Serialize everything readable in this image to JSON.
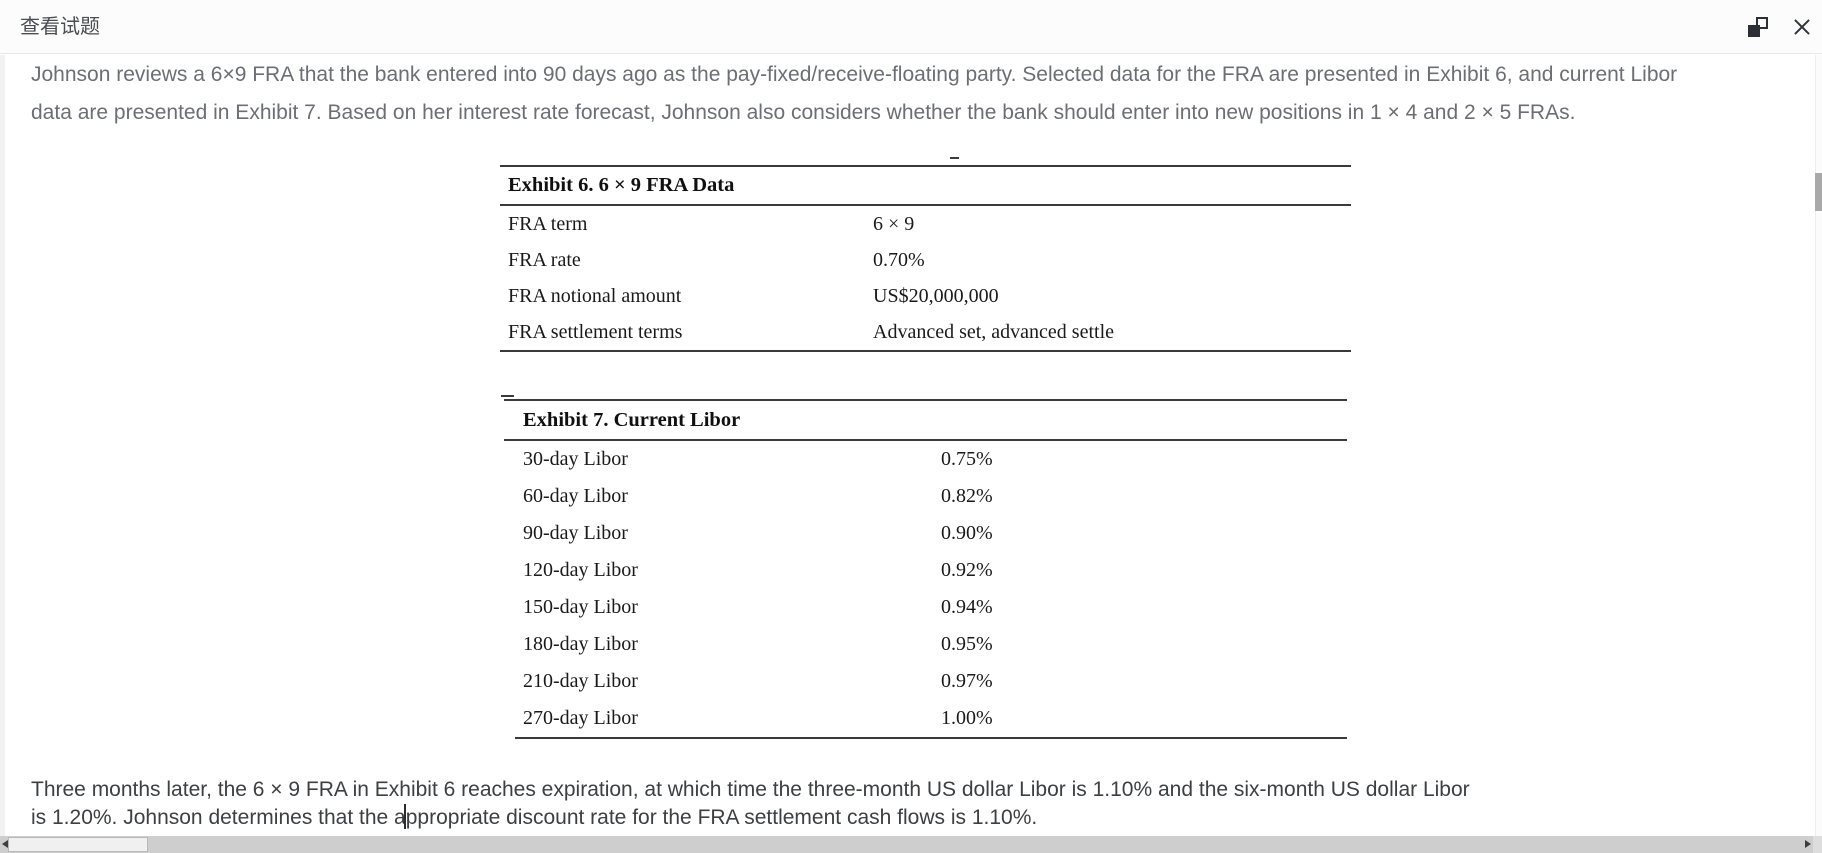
{
  "window": {
    "title": "查看试题"
  },
  "icons": {
    "restore": "overlapping-squares-restore",
    "close": "✕",
    "h_scroll_left": "◄",
    "h_scroll_right": "►"
  },
  "intro": {
    "line1": "Johnson reviews a 6×9 FRA that the bank entered into 90 days ago as the pay-fixed/receive-floating party. Selected data for the FRA are presented in Exhibit 6, and current Libor",
    "line2": "data are presented in Exhibit 7. Based on her interest rate forecast, Johnson also considers whether the bank should enter into new positions in 1 × 4 and 2 × 5 FRAs."
  },
  "exhibit6": {
    "title": "Exhibit 6. 6 × 9 FRA Data",
    "rows": [
      {
        "label": "FRA term",
        "value": "6 × 9"
      },
      {
        "label": "FRA rate",
        "value": "0.70%"
      },
      {
        "label": "FRA notional amount",
        "value": "US$20,000,000"
      },
      {
        "label": "FRA settlement terms",
        "value": "Advanced set, advanced settle"
      }
    ]
  },
  "exhibit7": {
    "title": "Exhibit 7. Current Libor",
    "rows": [
      {
        "label": "30-day Libor",
        "value": "0.75%"
      },
      {
        "label": "60-day Libor",
        "value": "0.82%"
      },
      {
        "label": "90-day Libor",
        "value": "0.90%"
      },
      {
        "label": "120-day Libor",
        "value": "0.92%"
      },
      {
        "label": "150-day Libor",
        "value": "0.94%"
      },
      {
        "label": "180-day Libor",
        "value": "0.95%"
      },
      {
        "label": "210-day Libor",
        "value": "0.97%"
      },
      {
        "label": "270-day Libor",
        "value": "1.00%"
      }
    ]
  },
  "closing": {
    "line1": "Three months later, the 6 × 9 FRA in Exhibit 6 reaches expiration, at which time the three-month US dollar Libor is 1.10% and the six-month US dollar Libor",
    "line2": "is 1.20%. Johnson determines that the appropriate discount rate for the FRA settlement cash flows is 1.10%."
  }
}
